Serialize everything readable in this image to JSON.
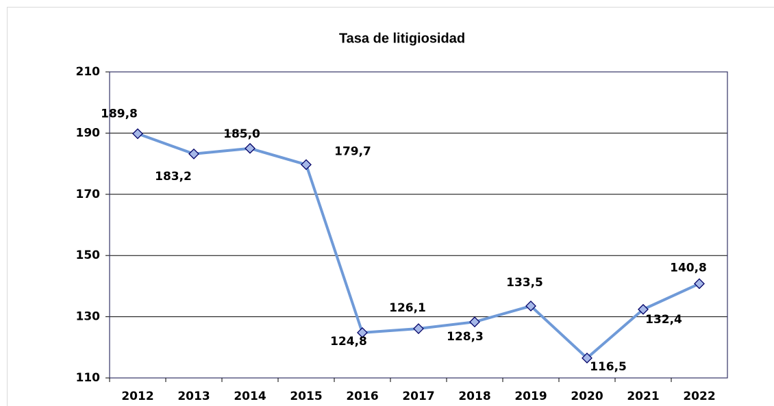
{
  "chart_data": {
    "type": "line",
    "title": "Tasa de litigiosidad",
    "categories": [
      "2012",
      "2013",
      "2014",
      "2015",
      "2016",
      "2017",
      "2018",
      "2019",
      "2020",
      "2021",
      "2022"
    ],
    "series": [
      {
        "name": "Tasa de litigiosidad",
        "color": "#6f9ad8",
        "values": [
          189.8,
          183.2,
          185.0,
          179.7,
          124.8,
          126.1,
          128.3,
          133.5,
          116.5,
          132.4,
          140.8
        ],
        "value_labels": [
          "189,8",
          "183,2",
          "185,0",
          "179,7",
          "124,8",
          "126,1",
          "128,3",
          "133,5",
          "116,5",
          "132,4",
          "140,8"
        ]
      }
    ],
    "ylim": [
      110,
      210
    ],
    "yticks": [
      110,
      130,
      150,
      170,
      190,
      210
    ],
    "grid": true
  }
}
